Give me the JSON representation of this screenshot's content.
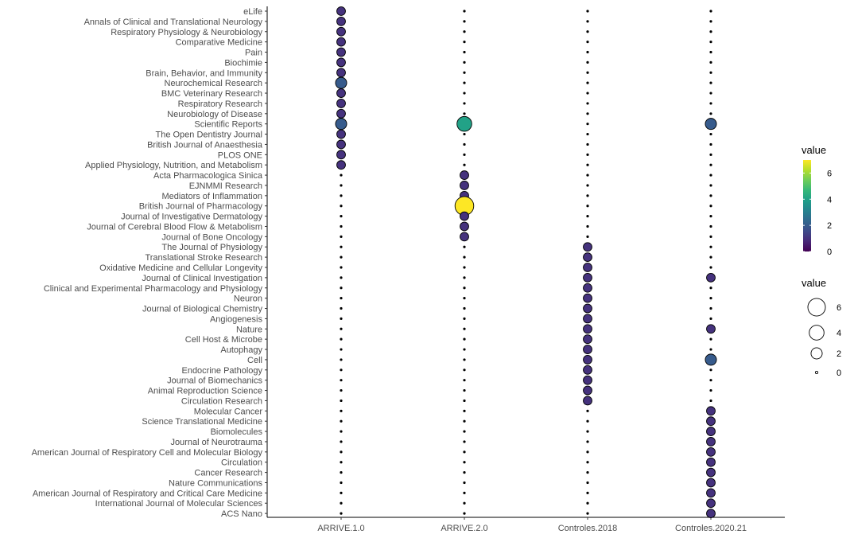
{
  "chart_data": {
    "type": "scatter",
    "x_categories": [
      "ARRIVE.1.0",
      "ARRIVE.2.0",
      "Controles.2018",
      "Controles.2020.21"
    ],
    "y_categories": [
      "eLife",
      "Annals of Clinical and Translational Neurology",
      "Respiratory Physiology & Neurobiology",
      "Comparative Medicine",
      "Pain",
      "Biochimie",
      "Brain, Behavior, and Immunity",
      "Neurochemical Research",
      "BMC Veterinary Research",
      "Respiratory Research",
      "Neurobiology of Disease",
      "Scientific Reports",
      "The Open Dentistry Journal",
      "British Journal of Anaesthesia",
      "PLOS ONE",
      "Applied Physiology, Nutrition, and Metabolism",
      "Acta Pharmacologica Sinica",
      "EJNMMI Research",
      "Mediators of Inflammation",
      "British Journal of Pharmacology",
      "Journal of Investigative Dermatology",
      "Journal of Cerebral Blood Flow & Metabolism",
      "Journal of Bone Oncology",
      "The Journal of Physiology",
      "Translational Stroke Research",
      "Oxidative Medicine and Cellular Longevity",
      "Journal of Clinical Investigation",
      "Clinical and Experimental Pharmacology and Physiology",
      "Neuron",
      "Journal of Biological Chemistry",
      "Angiogenesis",
      "Nature",
      "Cell Host & Microbe",
      "Autophagy",
      "Cell",
      "Endocrine Pathology",
      "Journal of Biomechanics",
      "Animal Reproduction Science",
      "Circulation Research",
      "Molecular Cancer",
      "Science Translational Medicine",
      "Biomolecules",
      "Journal of Neurotrauma",
      "American Journal of Respiratory Cell and Molecular Biology",
      "Circulation",
      "Cancer Research",
      "Nature Communications",
      "American Journal of Respiratory and Critical Care Medicine",
      "International Journal of Molecular Sciences",
      "ACS Nano"
    ],
    "series": [
      {
        "name": "ARRIVE.1.0",
        "values": [
          1,
          1,
          1,
          1,
          1,
          1,
          1,
          2,
          1,
          1,
          1,
          2,
          1,
          1,
          1,
          1,
          0,
          0,
          0,
          0,
          0,
          0,
          0,
          0,
          0,
          0,
          0,
          0,
          0,
          0,
          0,
          0,
          0,
          0,
          0,
          0,
          0,
          0,
          0,
          0,
          0,
          0,
          0,
          0,
          0,
          0,
          0,
          0,
          0,
          0
        ]
      },
      {
        "name": "ARRIVE.2.0",
        "values": [
          0,
          0,
          0,
          0,
          0,
          0,
          0,
          0,
          0,
          0,
          0,
          4,
          0,
          0,
          0,
          0,
          1,
          1,
          1,
          7,
          1,
          1,
          1,
          0,
          0,
          0,
          0,
          0,
          0,
          0,
          0,
          0,
          0,
          0,
          0,
          0,
          0,
          0,
          0,
          0,
          0,
          0,
          0,
          0,
          0,
          0,
          0,
          0,
          0,
          0
        ]
      },
      {
        "name": "Controles.2018",
        "values": [
          0,
          0,
          0,
          0,
          0,
          0,
          0,
          0,
          0,
          0,
          0,
          0,
          0,
          0,
          0,
          0,
          0,
          0,
          0,
          0,
          0,
          0,
          0,
          1,
          1,
          1,
          1,
          1,
          1,
          1,
          1,
          1,
          1,
          1,
          1,
          1,
          1,
          1,
          1,
          0,
          0,
          0,
          0,
          0,
          0,
          0,
          0,
          0,
          0,
          0
        ]
      },
      {
        "name": "Controles.2020.21",
        "values": [
          0,
          0,
          0,
          0,
          0,
          0,
          0,
          0,
          0,
          0,
          0,
          2,
          0,
          0,
          0,
          0,
          0,
          0,
          0,
          0,
          0,
          0,
          0,
          0,
          0,
          0,
          1,
          0,
          0,
          0,
          0,
          1,
          0,
          0,
          2,
          0,
          0,
          0,
          0,
          1,
          1,
          1,
          1,
          1,
          1,
          1,
          1,
          1,
          1,
          1
        ]
      }
    ],
    "color_legend": {
      "title": "value",
      "ticks": [
        "0",
        "2",
        "4",
        "6"
      ],
      "range": [
        0,
        7
      ],
      "colormap": "viridis"
    },
    "size_legend": {
      "title": "value",
      "labels": [
        "6",
        "4",
        "2",
        "0"
      ],
      "values": [
        6,
        4,
        2,
        0
      ]
    },
    "grid": false
  }
}
